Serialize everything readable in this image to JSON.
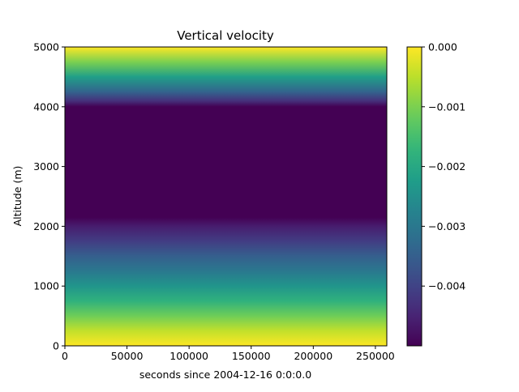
{
  "chart_data": {
    "type": "heatmap",
    "title": "Vertical velocity",
    "xlabel": "seconds since 2004-12-16 0:0:0.0",
    "ylabel": "Altitude (m)",
    "xlim": [
      0,
      259200
    ],
    "ylim": [
      0,
      5000
    ],
    "x_ticks": [
      0,
      50000,
      100000,
      150000,
      200000,
      250000
    ],
    "x_tick_labels": [
      "0",
      "50000",
      "100000",
      "150000",
      "200000",
      "250000"
    ],
    "y_ticks": [
      0,
      1000,
      2000,
      3000,
      4000,
      5000
    ],
    "y_tick_labels": [
      "0",
      "1000",
      "2000",
      "3000",
      "4000",
      "5000"
    ],
    "colorbar": {
      "colormap": "viridis",
      "vmin": -0.005,
      "vmax": 0.0,
      "ticks": [
        0.0,
        -0.001,
        -0.002,
        -0.003,
        -0.004
      ],
      "tick_labels": [
        "0.000",
        "−0.001",
        "−0.002",
        "−0.003",
        "−0.004"
      ]
    },
    "profile": {
      "altitude": [
        0,
        250,
        500,
        750,
        1000,
        1250,
        1500,
        1750,
        2000,
        2150,
        2250,
        2500,
        3000,
        3500,
        4000,
        4100,
        4250,
        4500,
        4750,
        5000
      ],
      "value": [
        0.0,
        -0.00045,
        -0.0011,
        -0.0018,
        -0.0024,
        -0.003,
        -0.0035,
        -0.0041,
        -0.0046,
        -0.005,
        -0.005,
        -0.005,
        -0.005,
        -0.005,
        -0.005,
        -0.0043,
        -0.0034,
        -0.0022,
        -0.001,
        0.0
      ]
    }
  }
}
